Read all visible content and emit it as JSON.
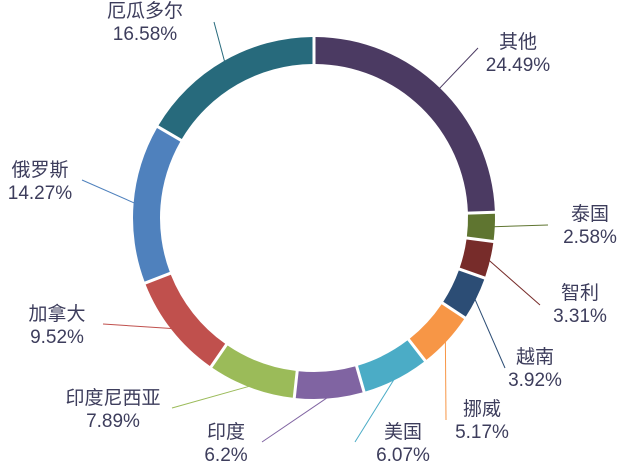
{
  "chart_data": {
    "type": "pie",
    "donut": true,
    "slices": [
      {
        "label": "其他",
        "value_text": "24.49%",
        "value": 24.49,
        "color": "#4B3A62"
      },
      {
        "label": "泰国",
        "value_text": "2.58%",
        "value": 2.58,
        "color": "#5F7530"
      },
      {
        "label": "智利",
        "value_text": "3.31%",
        "value": 3.31,
        "color": "#772C2A"
      },
      {
        "label": "越南",
        "value_text": "3.92%",
        "value": 3.92,
        "color": "#2C4D75"
      },
      {
        "label": "挪威",
        "value_text": "5.17%",
        "value": 5.17,
        "color": "#F79646"
      },
      {
        "label": "美国",
        "value_text": "6.07%",
        "value": 6.07,
        "color": "#4BACC6"
      },
      {
        "label": "印度",
        "value_text": "6.2%",
        "value": 6.2,
        "color": "#8064A2"
      },
      {
        "label": "印度尼西亚",
        "value_text": "7.89%",
        "value": 7.89,
        "color": "#9BBB59"
      },
      {
        "label": "加拿大",
        "value_text": "9.52%",
        "value": 9.52,
        "color": "#C0504D"
      },
      {
        "label": "俄罗斯",
        "value_text": "14.27%",
        "value": 14.27,
        "color": "#4F81BD"
      },
      {
        "label": "厄瓜多尔",
        "value_text": "16.58%",
        "value": 16.58,
        "color": "#276A7C"
      }
    ],
    "start_angle_deg": 0,
    "direction": "clockwise",
    "legend": "none",
    "data_labels": "outside-with-leader-lines"
  }
}
